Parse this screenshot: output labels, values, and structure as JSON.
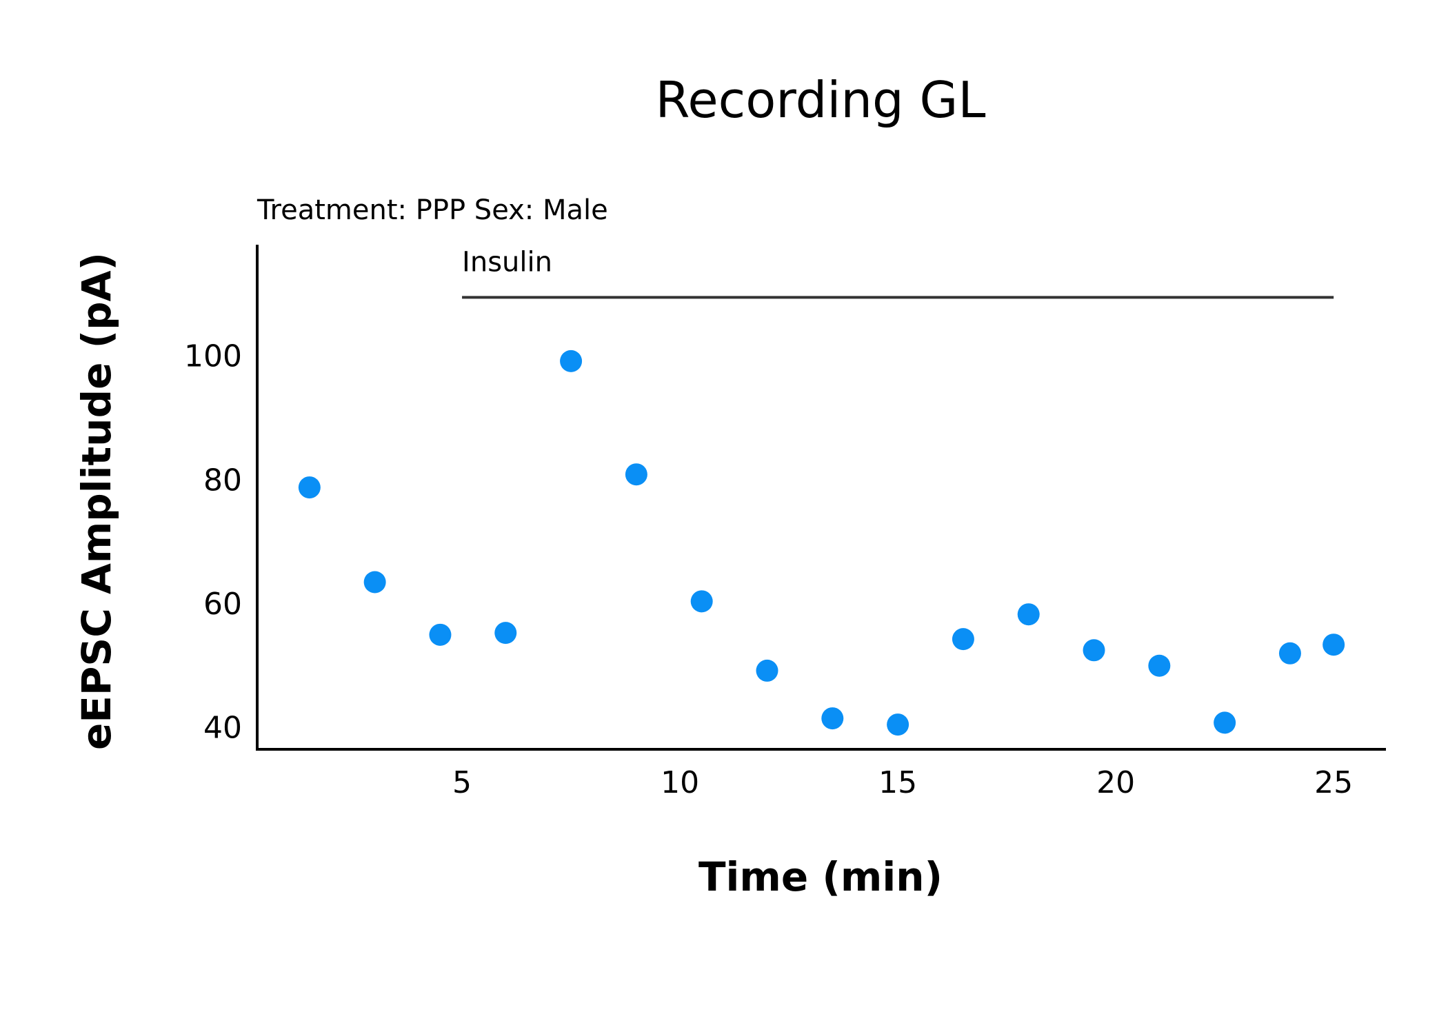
{
  "chart_data": {
    "type": "scatter",
    "title": "Recording GL",
    "subtitle": "Treatment: PPP  Sex: Male",
    "xlabel": "Time (min)",
    "ylabel": "eEPSC Amplitude (pA)",
    "xlim": [
      0.3,
      26.2
    ],
    "ylim": [
      36.5,
      118
    ],
    "xticks": [
      5,
      10,
      15,
      20,
      25
    ],
    "yticks": [
      40,
      60,
      80,
      100
    ],
    "grid": false,
    "legend": "none",
    "point_color": "#0A8FF5",
    "axis_color": "#000000",
    "annotation": {
      "label": "Insulin",
      "x_start": 5,
      "x_end": 25,
      "y": 109.5,
      "color": "#333333"
    },
    "series": [
      {
        "x": [
          1.5,
          3,
          4.5,
          6,
          7.5,
          9,
          10.5,
          12,
          13.5,
          15,
          16.5,
          18,
          19.5,
          21,
          22.5,
          24,
          25
        ],
        "y": [
          78.8,
          63.5,
          55.0,
          55.3,
          99.2,
          80.9,
          60.4,
          49.2,
          41.5,
          40.5,
          54.3,
          58.3,
          52.5,
          50.0,
          40.8,
          52.0,
          53.4
        ]
      }
    ]
  }
}
